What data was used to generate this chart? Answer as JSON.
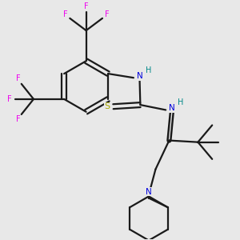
{
  "background_color": "#e8e8e8",
  "bond_color": "#1a1a1a",
  "N_color": "#0000dd",
  "S_color": "#aaaa00",
  "F_color": "#ee00ee",
  "H_color": "#008888",
  "figsize": [
    3.0,
    3.0
  ],
  "dpi": 100,
  "xlim": [
    -2.5,
    4.5
  ],
  "ylim": [
    -4.5,
    2.5
  ]
}
